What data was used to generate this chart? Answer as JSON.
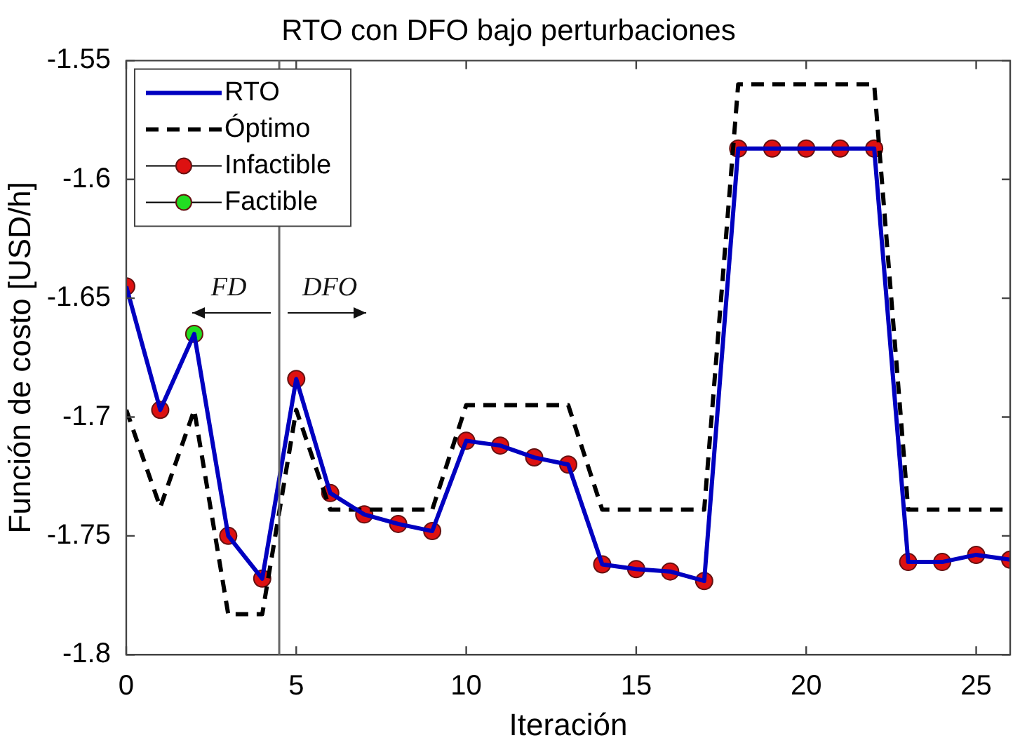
{
  "chart_data": {
    "type": "line",
    "title": "RTO con DFO bajo perturbaciones",
    "xlabel": "Iteración",
    "ylabel": "Función de costo [USD/h]",
    "x": [
      0,
      1,
      2,
      3,
      4,
      5,
      6,
      7,
      8,
      9,
      10,
      11,
      12,
      13,
      14,
      15,
      16,
      17,
      18,
      19,
      20,
      21,
      22,
      23,
      24,
      25,
      26
    ],
    "series": [
      {
        "name": "RTO",
        "type": "line",
        "color": "#0000c0",
        "line_style": "solid",
        "marker": "none",
        "values": [
          -1.645,
          -1.697,
          -1.665,
          -1.75,
          -1.768,
          -1.684,
          -1.732,
          -1.741,
          -1.745,
          -1.748,
          -1.71,
          -1.712,
          -1.717,
          -1.72,
          -1.762,
          -1.764,
          -1.765,
          -1.769,
          -1.587,
          -1.587,
          -1.587,
          -1.587,
          -1.587,
          -1.761,
          -1.761,
          -1.758,
          -1.76
        ]
      },
      {
        "name": "Óptimo",
        "type": "line",
        "color": "#000000",
        "line_style": "dashed",
        "marker": "none",
        "values": [
          -1.697,
          -1.738,
          -1.697,
          -1.783,
          -1.783,
          -1.697,
          -1.739,
          -1.739,
          -1.739,
          -1.739,
          -1.695,
          -1.695,
          -1.695,
          -1.695,
          -1.739,
          -1.739,
          -1.739,
          -1.739,
          -1.56,
          -1.56,
          -1.56,
          -1.56,
          -1.56,
          -1.739,
          -1.739,
          -1.739,
          -1.739
        ]
      },
      {
        "name": "Infactible",
        "type": "scatter",
        "color": "#dd1111",
        "marker": "circle",
        "x": [
          0,
          1,
          3,
          4,
          5,
          6,
          7,
          8,
          9,
          10,
          11,
          12,
          13,
          14,
          15,
          16,
          17,
          18,
          19,
          20,
          21,
          22,
          23,
          24,
          25,
          26
        ],
        "values": [
          -1.645,
          -1.697,
          -1.75,
          -1.768,
          -1.684,
          -1.732,
          -1.741,
          -1.745,
          -1.748,
          -1.71,
          -1.712,
          -1.717,
          -1.72,
          -1.762,
          -1.764,
          -1.765,
          -1.769,
          -1.587,
          -1.587,
          -1.587,
          -1.587,
          -1.587,
          -1.761,
          -1.761,
          -1.758,
          -1.76
        ]
      },
      {
        "name": "Factible",
        "type": "scatter",
        "color": "#22dd22",
        "marker": "circle",
        "x": [
          2
        ],
        "values": [
          -1.665
        ]
      }
    ],
    "xlim": [
      0,
      26
    ],
    "xticks": [
      0,
      5,
      10,
      15,
      20,
      25
    ],
    "ylim": [
      -1.8,
      -1.55
    ],
    "yticks": [
      -1.8,
      -1.75,
      -1.7,
      -1.65,
      -1.6,
      -1.55
    ],
    "ref_lines": [
      {
        "axis": "x",
        "value": 4.5,
        "color": "#666666"
      }
    ],
    "annotations": [
      "FD",
      "DFO"
    ],
    "grid": false,
    "legend": "top left"
  }
}
